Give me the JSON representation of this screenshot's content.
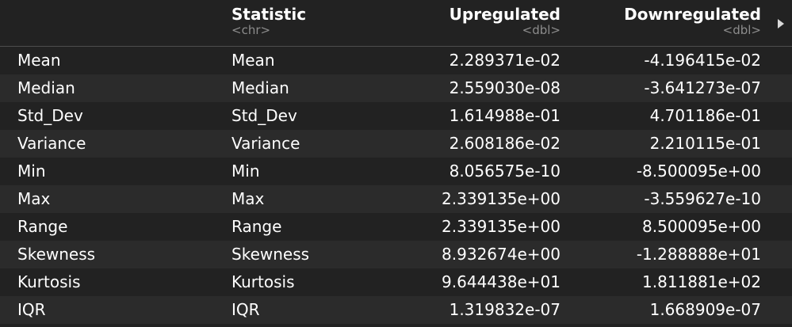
{
  "columns": [
    {
      "name": "Statistic",
      "type": "<chr>"
    },
    {
      "name": "Upregulated",
      "type": "<dbl>"
    },
    {
      "name": "Downregulated",
      "type": "<dbl>"
    }
  ],
  "rows": [
    {
      "rowname": "Mean",
      "statistic": "Mean",
      "up": "2.289371e-02",
      "down": "-4.196415e-02"
    },
    {
      "rowname": "Median",
      "statistic": "Median",
      "up": "2.559030e-08",
      "down": "-3.641273e-07"
    },
    {
      "rowname": "Std_Dev",
      "statistic": "Std_Dev",
      "up": "1.614988e-01",
      "down": "4.701186e-01"
    },
    {
      "rowname": "Variance",
      "statistic": "Variance",
      "up": "2.608186e-02",
      "down": "2.210115e-01"
    },
    {
      "rowname": "Min",
      "statistic": "Min",
      "up": "8.056575e-10",
      "down": "-8.500095e+00"
    },
    {
      "rowname": "Max",
      "statistic": "Max",
      "up": "2.339135e+00",
      "down": "-3.559627e-10"
    },
    {
      "rowname": "Range",
      "statistic": "Range",
      "up": "2.339135e+00",
      "down": "8.500095e+00"
    },
    {
      "rowname": "Skewness",
      "statistic": "Skewness",
      "up": "8.932674e+00",
      "down": "-1.288888e+01"
    },
    {
      "rowname": "Kurtosis",
      "statistic": "Kurtosis",
      "up": "9.644438e+01",
      "down": "1.811881e+02"
    },
    {
      "rowname": "IQR",
      "statistic": "IQR",
      "up": "1.319832e-07",
      "down": "1.668909e-07"
    }
  ],
  "icons": {
    "next_columns": "triangle-right-icon"
  },
  "colors": {
    "background": "#222222",
    "alt_row": "#2b2b2b",
    "text": "#ffffff",
    "type_text": "#8c8c8c"
  }
}
